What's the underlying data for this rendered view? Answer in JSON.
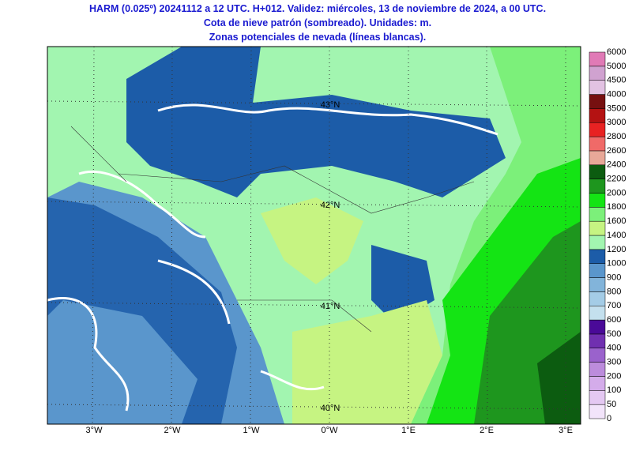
{
  "header": {
    "title_lines": [
      "HARM (0.025º) 20241112 a 12 UTC. H+012. Validez: miércoles, 13 de noviembre de 2024, a 00 UTC.",
      "Cota de nieve patrón (sombreado). Unidades: m.",
      "Zonas potenciales de nevada (líneas blancas)."
    ]
  },
  "map": {
    "lon_labels": [
      "3°W",
      "2°W",
      "1°W",
      "0°W",
      "1°E",
      "2°E",
      "3°E"
    ],
    "lat_labels": [
      "43°N",
      "42°N",
      "41°N",
      "40°N"
    ]
  },
  "colorbar": {
    "labels": [
      0,
      50,
      100,
      200,
      300,
      400,
      500,
      600,
      700,
      800,
      900,
      1000,
      1200,
      1400,
      1600,
      1800,
      2000,
      2200,
      2400,
      2600,
      2800,
      3000,
      3500,
      4000,
      4500,
      5000,
      6000
    ],
    "colors": [
      "#f2e4fa",
      "#e4c8f2",
      "#d4acea",
      "#bc8cdc",
      "#9a62cc",
      "#7030b0",
      "#4a0a98",
      "#c4e0ee",
      "#a4cce6",
      "#82b4da",
      "#5a96cc",
      "#1c5ca8",
      "#a2f5b0",
      "#c6f482",
      "#7cf07a",
      "#14e414",
      "#1e961e",
      "#0c5c10",
      "#e8a898",
      "#f06a68",
      "#e82222",
      "#b41212",
      "#761010",
      "#e2c2e2",
      "#d0a2d0",
      "#e07ab6",
      "#e02a82"
    ]
  }
}
